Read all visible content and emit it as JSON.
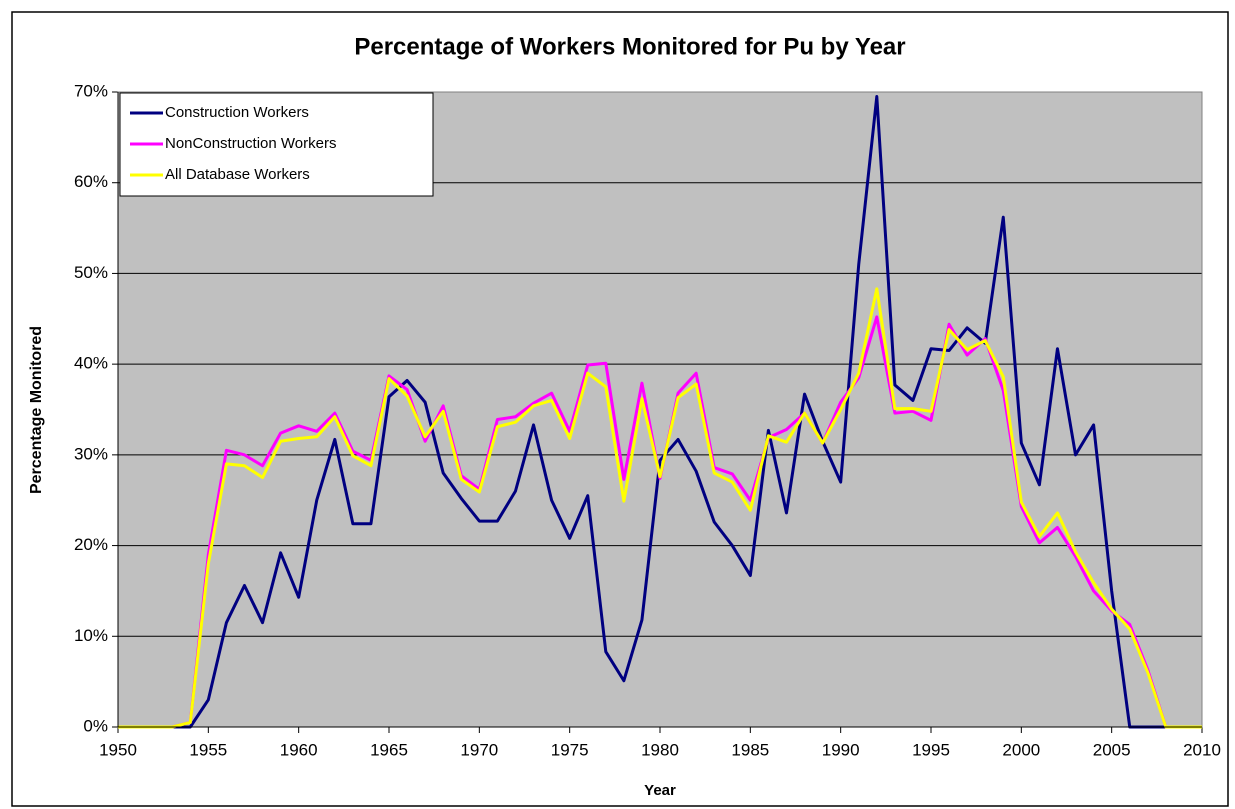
{
  "chart_data": {
    "type": "line",
    "title": "Percentage of Workers Monitored for Pu by Year",
    "x_label": "Year",
    "y_label": "Percentage Monitored",
    "x": [
      1950,
      1951,
      1952,
      1953,
      1954,
      1955,
      1956,
      1957,
      1958,
      1959,
      1960,
      1961,
      1962,
      1963,
      1964,
      1965,
      1966,
      1967,
      1968,
      1969,
      1970,
      1971,
      1972,
      1973,
      1974,
      1975,
      1976,
      1977,
      1978,
      1979,
      1980,
      1981,
      1982,
      1983,
      1984,
      1985,
      1986,
      1987,
      1988,
      1989,
      1990,
      1991,
      1992,
      1993,
      1994,
      1995,
      1996,
      1997,
      1998,
      1999,
      2000,
      2001,
      2002,
      2003,
      2004,
      2005,
      2006,
      2007,
      2008,
      2009,
      2010
    ],
    "xlim": [
      1950,
      2010
    ],
    "xticks": [
      1950,
      1955,
      1960,
      1965,
      1970,
      1975,
      1980,
      1985,
      1990,
      1995,
      2000,
      2005,
      2010
    ],
    "ylim": [
      0,
      70
    ],
    "yticks": [
      {
        "value": 0,
        "label": "0%"
      },
      {
        "value": 10,
        "label": "10%"
      },
      {
        "value": 20,
        "label": "20%"
      },
      {
        "value": 30,
        "label": "30%"
      },
      {
        "value": 40,
        "label": "40%"
      },
      {
        "value": 50,
        "label": "50%"
      },
      {
        "value": 60,
        "label": "60%"
      },
      {
        "value": 70,
        "label": "70%"
      }
    ],
    "grid": true,
    "legend": "top-left",
    "background": "#c0c0c0",
    "series": [
      {
        "name": "Construction Workers",
        "color": "#000080",
        "values": [
          0,
          0,
          0,
          0,
          0,
          3,
          11.5,
          15.6,
          11.5,
          19.2,
          14.3,
          25,
          31.7,
          22.4,
          22.4,
          36.4,
          38.2,
          35.8,
          28,
          25.2,
          22.7,
          22.7,
          26,
          33.3,
          25,
          20.8,
          25.5,
          8.3,
          5.1,
          11.8,
          29.4,
          31.7,
          28.2,
          22.6,
          20,
          16.7,
          32.7,
          23.6,
          36.7,
          31.5,
          27,
          51,
          69.5,
          37.7,
          36,
          41.7,
          41.5,
          44,
          42.3,
          56.2,
          31.3,
          26.7,
          41.7,
          30,
          33.3,
          15,
          0,
          0,
          0,
          0,
          0
        ]
      },
      {
        "name": "NonConstruction Workers",
        "color": "#ff00ff",
        "values": [
          0,
          0,
          0,
          0,
          0.5,
          19,
          30.5,
          30,
          28.8,
          32.4,
          33.2,
          32.6,
          34.6,
          30.4,
          29.4,
          38.7,
          37.2,
          31.5,
          35.4,
          27.7,
          26.2,
          33.9,
          34.2,
          35.7,
          36.8,
          32.6,
          39.9,
          40.1,
          27.3,
          37.9,
          27.4,
          36.8,
          39,
          28.6,
          27.9,
          25,
          31.9,
          32.8,
          34.6,
          31.3,
          35.8,
          38.5,
          45.2,
          34.6,
          34.8,
          33.8,
          44.4,
          41,
          42.8,
          37.1,
          24.3,
          20.3,
          22,
          18.8,
          15,
          12.8,
          11.3,
          6.3,
          0,
          0,
          0
        ]
      },
      {
        "name": "All Database Workers",
        "color": "#ffff00",
        "values": [
          0,
          0,
          0,
          0,
          0.5,
          18,
          29,
          28.8,
          27.5,
          31.5,
          31.8,
          32,
          34.2,
          29.9,
          28.8,
          38.4,
          36.5,
          32,
          34.8,
          27.3,
          25.9,
          33.1,
          33.6,
          35.4,
          36,
          31.8,
          39,
          37.5,
          24.9,
          36.2,
          27.6,
          36.3,
          37.8,
          28,
          27,
          23.9,
          32.1,
          31.4,
          34.6,
          31.3,
          35,
          39,
          48.3,
          35.1,
          35.1,
          34.8,
          43.8,
          41.6,
          42.6,
          38.6,
          24.8,
          21,
          23.6,
          19.3,
          15.9,
          13,
          10.8,
          6,
          0,
          0,
          0
        ]
      }
    ]
  }
}
